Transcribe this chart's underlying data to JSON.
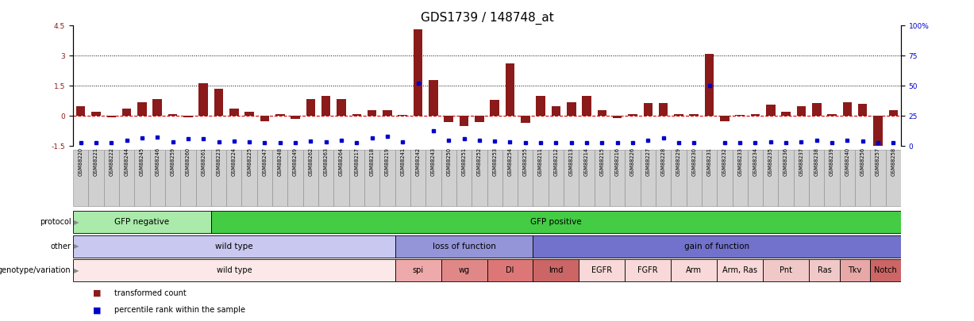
{
  "title": "GDS1739 / 148748_at",
  "samples": [
    "GSM88220",
    "GSM88221",
    "GSM88222",
    "GSM88244",
    "GSM88245",
    "GSM88246",
    "GSM88259",
    "GSM88260",
    "GSM88261",
    "GSM88223",
    "GSM88224",
    "GSM88225",
    "GSM88247",
    "GSM88248",
    "GSM88249",
    "GSM88262",
    "GSM88263",
    "GSM88264",
    "GSM88217",
    "GSM88218",
    "GSM88219",
    "GSM88241",
    "GSM88242",
    "GSM88243",
    "GSM88250",
    "GSM88251",
    "GSM88252",
    "GSM88253",
    "GSM88254",
    "GSM88255",
    "GSM88211",
    "GSM88212",
    "GSM88213",
    "GSM88214",
    "GSM88215",
    "GSM88216",
    "GSM88226",
    "GSM88227",
    "GSM88228",
    "GSM88229",
    "GSM88230",
    "GSM88231",
    "GSM88232",
    "GSM88233",
    "GSM88234",
    "GSM88235",
    "GSM88236",
    "GSM88237",
    "GSM88238",
    "GSM88239",
    "GSM88240",
    "GSM88256",
    "GSM88257",
    "GSM88258"
  ],
  "red_values": [
    0.5,
    0.2,
    -0.05,
    0.35,
    0.7,
    0.85,
    0.1,
    -0.05,
    1.65,
    1.35,
    0.35,
    0.2,
    -0.25,
    0.1,
    -0.15,
    0.85,
    1.0,
    0.85,
    0.1,
    0.3,
    0.3,
    0.05,
    4.3,
    1.8,
    -0.3,
    -0.5,
    -0.3,
    0.8,
    2.6,
    -0.35,
    1.0,
    0.5,
    0.7,
    1.0,
    0.3,
    -0.1,
    0.1,
    0.65,
    0.65,
    0.1,
    0.1,
    3.1,
    -0.25,
    0.05,
    0.1,
    0.55,
    0.2,
    0.5,
    0.65,
    0.1,
    0.7,
    0.6,
    -1.6,
    0.3
  ],
  "blue_values": [
    -1.35,
    -1.35,
    -1.35,
    -1.2,
    -1.1,
    -1.05,
    -1.3,
    -1.15,
    -1.15,
    -1.3,
    -1.25,
    -1.3,
    -1.35,
    -1.35,
    -1.35,
    -1.25,
    -1.3,
    -1.2,
    -1.35,
    -1.1,
    -1.0,
    -1.3,
    1.65,
    -0.75,
    -1.2,
    -1.15,
    -1.2,
    -1.25,
    -1.3,
    -1.35,
    -1.35,
    -1.35,
    -1.35,
    -1.35,
    -1.35,
    -1.35,
    -1.35,
    -1.2,
    -1.1,
    -1.35,
    -1.35,
    1.5,
    -1.35,
    -1.35,
    -1.35,
    -1.3,
    -1.35,
    -1.3,
    -1.2,
    -1.35,
    -1.2,
    -1.25,
    -1.35,
    -1.35
  ],
  "protocol_groups": [
    {
      "label": "GFP negative",
      "start": 0,
      "end": 9,
      "color": "#aaeaaa"
    },
    {
      "label": "GFP positive",
      "start": 9,
      "end": 54,
      "color": "#44cc44"
    }
  ],
  "other_groups": [
    {
      "label": "wild type",
      "start": 0,
      "end": 21,
      "color": "#c8c8f0"
    },
    {
      "label": "loss of function",
      "start": 21,
      "end": 30,
      "color": "#9494d8"
    },
    {
      "label": "gain of function",
      "start": 30,
      "end": 54,
      "color": "#7272cc"
    }
  ],
  "genotype_groups": [
    {
      "label": "wild type",
      "start": 0,
      "end": 21,
      "color": "#fce8e8"
    },
    {
      "label": "spi",
      "start": 21,
      "end": 24,
      "color": "#eeaaaa"
    },
    {
      "label": "wg",
      "start": 24,
      "end": 27,
      "color": "#e08888"
    },
    {
      "label": "Dl",
      "start": 27,
      "end": 30,
      "color": "#dd7777"
    },
    {
      "label": "lmd",
      "start": 30,
      "end": 33,
      "color": "#cc6666"
    },
    {
      "label": "EGFR",
      "start": 33,
      "end": 36,
      "color": "#f8d8d8"
    },
    {
      "label": "FGFR",
      "start": 36,
      "end": 39,
      "color": "#f8d8d8"
    },
    {
      "label": "Arm",
      "start": 39,
      "end": 42,
      "color": "#f8d8d8"
    },
    {
      "label": "Arm, Ras",
      "start": 42,
      "end": 45,
      "color": "#f8d8d8"
    },
    {
      "label": "Pnt",
      "start": 45,
      "end": 48,
      "color": "#f0c8c8"
    },
    {
      "label": "Ras",
      "start": 48,
      "end": 50,
      "color": "#f0c8c8"
    },
    {
      "label": "Tkv",
      "start": 50,
      "end": 52,
      "color": "#e8a8a8"
    },
    {
      "label": "Notch",
      "start": 52,
      "end": 54,
      "color": "#cc6666"
    }
  ],
  "ylim": [
    -1.5,
    4.5
  ],
  "yticks": [
    -1.5,
    0.0,
    1.5,
    3.0,
    4.5
  ],
  "y2ticks": [
    0,
    25,
    50,
    75,
    100
  ],
  "bar_color": "#8b1a1a",
  "dot_color": "#0000cc",
  "zero_line_color": "#cc0000",
  "hline_color": "#000000",
  "bg_color": "#ffffff",
  "title_fontsize": 11,
  "tick_fontsize": 6.5,
  "annot_fontsize": 7.5,
  "legend_red": "transformed count",
  "legend_blue": "percentile rank within the sample",
  "row_labels": [
    "protocol",
    "other",
    "genotype/variation"
  ]
}
